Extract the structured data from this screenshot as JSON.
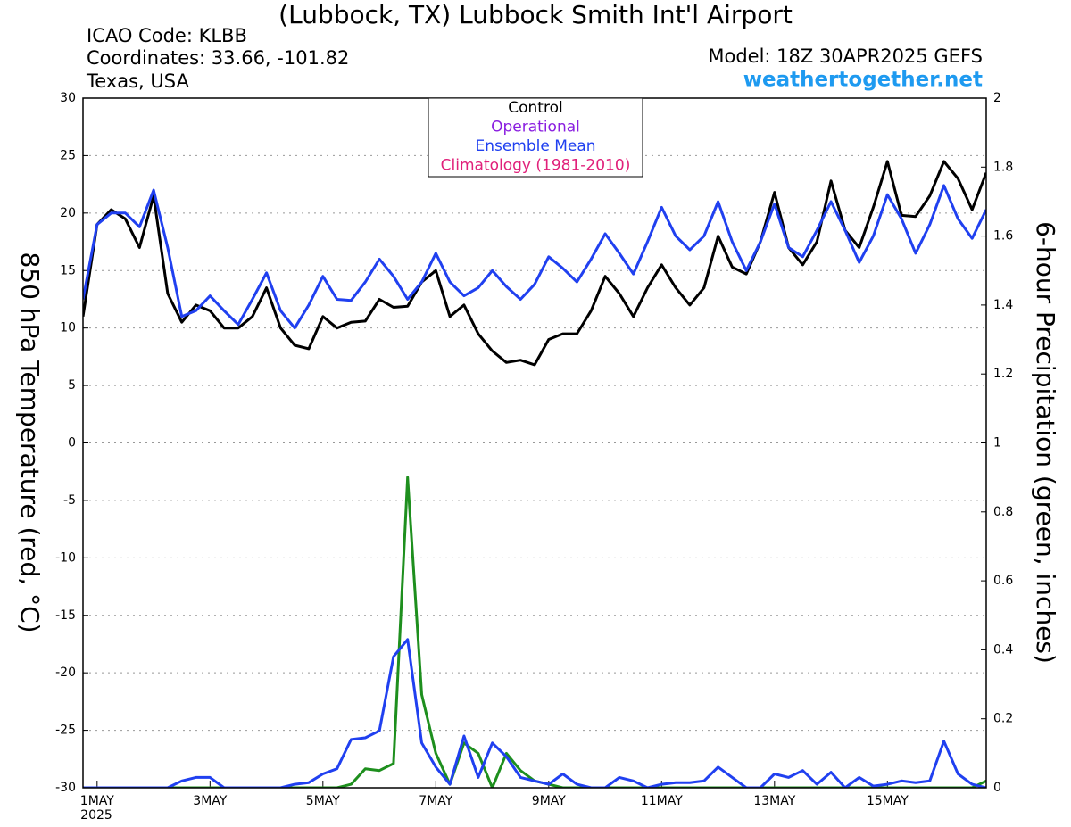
{
  "chart_data": {
    "type": "line",
    "title": "(Lubbock, TX) Lubbock Smith Int'l Airport",
    "info_left": [
      "ICAO Code: KLBB",
      "Coordinates: 33.66, -101.82",
      "Texas, USA"
    ],
    "model": "Model: 18Z 30APR2025 GEFS",
    "site": "weathertogether.net",
    "ylabel": "850 hPa Temperature (red, °C)",
    "y2label": "6-hour Precipitation (green, inches)",
    "year_label": "2025",
    "legend": [
      {
        "name": "Control",
        "color": "#000000"
      },
      {
        "name": "Operational",
        "color": "#8a1ee0"
      },
      {
        "name": "Ensemble Mean",
        "color": "#2040f0"
      },
      {
        "name": "Climatology (1981-2010)",
        "color": "#e0207a"
      }
    ],
    "grid": true,
    "xlim": [
      0,
      384
    ],
    "xticks": [
      {
        "value": 6,
        "label": "1MAY"
      },
      {
        "value": 54,
        "label": "3MAY"
      },
      {
        "value": 102,
        "label": "5MAY"
      },
      {
        "value": 150,
        "label": "7MAY"
      },
      {
        "value": 198,
        "label": "9MAY"
      },
      {
        "value": 246,
        "label": "11MAY"
      },
      {
        "value": 294,
        "label": "13MAY"
      },
      {
        "value": 342,
        "label": "15MAY"
      }
    ],
    "ylim": [
      -30,
      30
    ],
    "yticks": [
      30,
      25,
      20,
      15,
      10,
      5,
      0,
      -5,
      -10,
      -15,
      -20,
      -25,
      -30
    ],
    "y2lim": [
      0,
      2
    ],
    "y2ticks": [
      0,
      0.2,
      0.4,
      0.6,
      0.8,
      1,
      1.2,
      1.4,
      1.6,
      1.8,
      2
    ],
    "x": [
      0,
      6,
      12,
      18,
      24,
      30,
      36,
      42,
      48,
      54,
      60,
      66,
      72,
      78,
      84,
      90,
      96,
      102,
      108,
      114,
      120,
      126,
      132,
      138,
      144,
      150,
      156,
      162,
      168,
      174,
      180,
      186,
      192,
      198,
      204,
      210,
      216,
      222,
      228,
      234,
      240,
      246,
      252,
      258,
      264,
      270,
      276,
      282,
      288,
      294,
      300,
      306,
      312,
      318,
      324,
      330,
      336,
      342,
      348,
      354,
      360,
      366,
      372,
      378,
      384
    ],
    "series": [
      {
        "color": "#1e8f1e",
        "axis": "y2",
        "width": 3,
        "values": [
          0,
          0,
          0,
          0,
          0,
          0,
          0,
          0,
          0,
          0,
          0,
          0,
          0,
          0,
          0,
          0,
          0,
          0,
          0,
          0.01,
          0.055,
          0.05,
          0.07,
          0.9,
          0.27,
          0.1,
          0.01,
          0.13,
          0.1,
          0,
          0.1,
          0.05,
          0.02,
          0.01,
          0,
          0,
          0,
          0,
          0,
          0,
          0,
          0,
          0,
          0,
          0,
          0,
          0,
          0,
          0,
          0,
          0,
          0,
          0,
          0,
          0,
          0,
          0,
          0,
          0,
          0,
          0,
          0,
          0,
          0,
          0.02
        ]
      },
      {
        "color": "#2040f0",
        "axis": "y2",
        "width": 3,
        "values": [
          0,
          0,
          0,
          0,
          0,
          0,
          0,
          0.02,
          0.03,
          0.03,
          0,
          0,
          0,
          0,
          0,
          0.01,
          0.015,
          0.04,
          0.055,
          0.14,
          0.145,
          0.165,
          0.38,
          0.43,
          0.13,
          0.06,
          0.01,
          0.15,
          0.03,
          0.13,
          0.09,
          0.03,
          0.02,
          0.01,
          0.04,
          0.01,
          0,
          0,
          0.03,
          0.02,
          0,
          0.01,
          0.015,
          0.015,
          0.02,
          0.06,
          0.03,
          0,
          0,
          0.04,
          0.03,
          0.05,
          0.01,
          0.045,
          0,
          0.03,
          0.005,
          0.01,
          0.02,
          0.015,
          0.02,
          0.135,
          0.04,
          0.01,
          0
        ]
      },
      {
        "color": "#000000",
        "axis": "y",
        "width": 3,
        "values": [
          11,
          19,
          20.3,
          19.5,
          17,
          21.5,
          13,
          10.5,
          12,
          11.5,
          10,
          10,
          11,
          13.5,
          10,
          8.5,
          8.2,
          11,
          10,
          10.5,
          10.6,
          12.5,
          11.8,
          11.9,
          14,
          15,
          11,
          12,
          9.5,
          8,
          7,
          7.2,
          6.8,
          9,
          9.5,
          9.5,
          11.5,
          14.5,
          13,
          11,
          13.5,
          15.5,
          13.5,
          12,
          13.5,
          18,
          15.3,
          14.7,
          17.5,
          21.8,
          17,
          15.5,
          17.5,
          22.8,
          18.5,
          17,
          20.5,
          24.5,
          19.8,
          19.7,
          21.5,
          24.5,
          23,
          20.3,
          23.5
        ]
      },
      {
        "color": "#2040f0",
        "axis": "y",
        "width": 3,
        "values": [
          12.5,
          19,
          20,
          20,
          18.8,
          22,
          17,
          11,
          11.5,
          12.8,
          11.5,
          10.3,
          12.5,
          14.8,
          11.5,
          10,
          12,
          14.5,
          12.5,
          12.4,
          14,
          16,
          14.5,
          12.5,
          14,
          16.5,
          14,
          12.8,
          13.5,
          15,
          13.6,
          12.5,
          13.8,
          16.2,
          15.2,
          14,
          16,
          18.2,
          16.5,
          14.7,
          17.5,
          20.5,
          18,
          16.8,
          18,
          21,
          17.5,
          15,
          17.5,
          20.8,
          17,
          16.2,
          18.5,
          21,
          18.5,
          15.7,
          18,
          21.6,
          19.5,
          16.5,
          19,
          22.4,
          19.5,
          17.8,
          20.3
        ]
      }
    ]
  }
}
